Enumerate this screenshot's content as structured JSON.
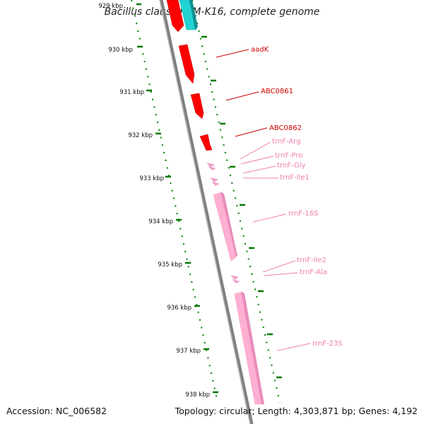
{
  "title": "Bacillus clausii KSM-K16, complete genome",
  "accession": "Accession: NC_006582",
  "summary": "Topology: circular; Length: 4,303,871 bp; Genes: 4,192",
  "colors": {
    "backbone": "#7f7f7f",
    "tick": "#007a00",
    "cds": "#ff0000",
    "cds_label": "#cc0000",
    "rna": "#ff9ec8",
    "rna_label": "#f07db0",
    "other": "#22d3d3"
  },
  "scale_labels": [
    "929 kbp",
    "930 kbp",
    "931 kbp",
    "932 kbp",
    "933 kbp",
    "934 kbp",
    "935 kbp",
    "936 kbp",
    "937 kbp",
    "938 kbp"
  ],
  "features": [
    {
      "name": "aadK",
      "kind": "cds"
    },
    {
      "name": "ABC0861",
      "kind": "cds"
    },
    {
      "name": "ABC0862",
      "kind": "cds"
    },
    {
      "name": "trnF-Arg",
      "kind": "rna"
    },
    {
      "name": "trnF-Pro",
      "kind": "rna"
    },
    {
      "name": "trnF-Gly",
      "kind": "rna"
    },
    {
      "name": "trnF-Ile1",
      "kind": "rna"
    },
    {
      "name": "rrnF-16S",
      "kind": "rna"
    },
    {
      "name": "trnF-Ile2",
      "kind": "rna"
    },
    {
      "name": "trnF-Ala",
      "kind": "rna"
    },
    {
      "name": "rrnF-23S",
      "kind": "rna"
    }
  ]
}
